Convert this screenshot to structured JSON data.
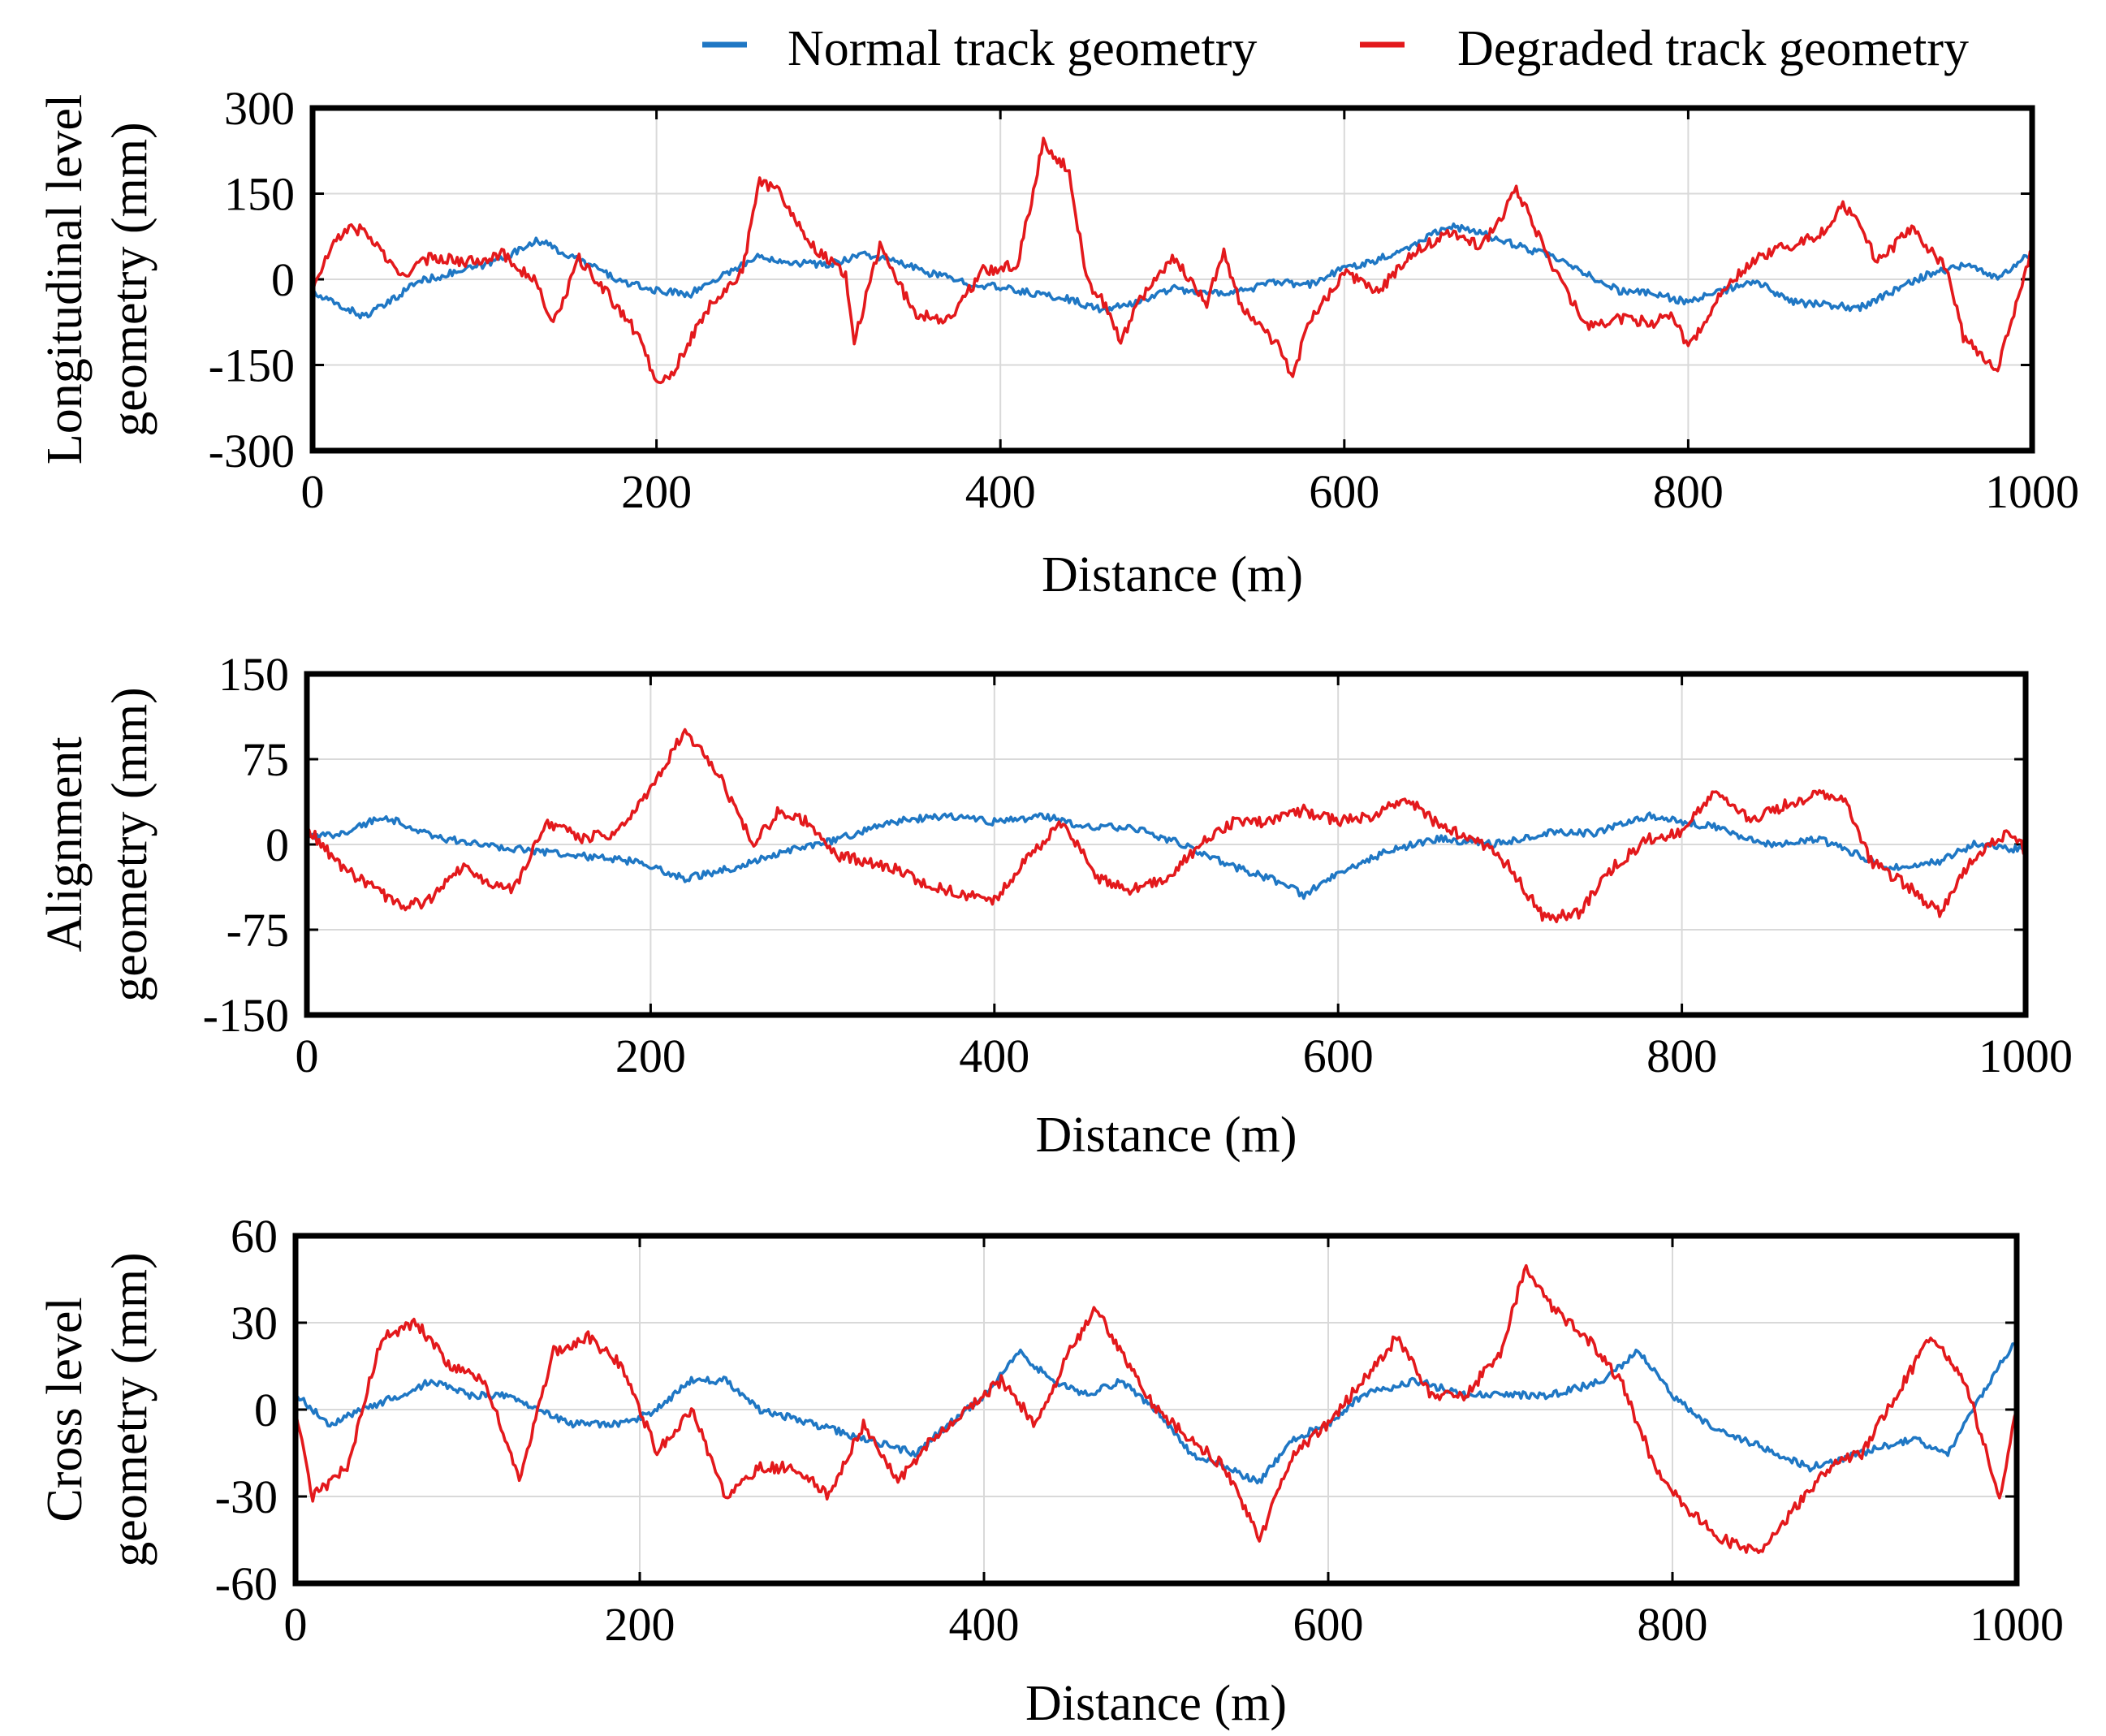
{
  "legend": {
    "items": [
      {
        "label": "Normal track geometry",
        "color": "#1f77c4"
      },
      {
        "label": "Degraded track geometry",
        "color": "#e3191c"
      }
    ]
  },
  "chart_data": [
    {
      "type": "line",
      "ylabel_lines": [
        "Longitudinal level",
        "geometry (mm)"
      ],
      "xlabel": "Distance (m)",
      "xlim": [
        0,
        1000
      ],
      "ylim": [
        -300,
        300
      ],
      "xticks": [
        "0",
        "200",
        "400",
        "600",
        "800",
        "1000"
      ],
      "yticks": [
        "300",
        "150",
        "0",
        "-150",
        "-300"
      ],
      "grid": true,
      "series": [
        {
          "name": "Normal track geometry",
          "color": "#1f77c4",
          "x": [
            0,
            15,
            30,
            45,
            60,
            80,
            100,
            120,
            130,
            150,
            165,
            180,
            200,
            220,
            240,
            260,
            280,
            300,
            320,
            340,
            360,
            380,
            400,
            420,
            440,
            460,
            480,
            500,
            520,
            540,
            560,
            580,
            600,
            620,
            640,
            660,
            680,
            700,
            720,
            740,
            760,
            780,
            800,
            820,
            840,
            860,
            880,
            900,
            920,
            940,
            960,
            980,
            1000
          ],
          "values": [
            -25,
            -45,
            -65,
            -40,
            -5,
            10,
            25,
            50,
            70,
            40,
            20,
            -5,
            -20,
            -25,
            10,
            40,
            30,
            25,
            45,
            30,
            10,
            -5,
            -15,
            -25,
            -35,
            -55,
            -40,
            -15,
            -25,
            -20,
            -5,
            -10,
            20,
            35,
            60,
            95,
            80,
            60,
            40,
            10,
            -20,
            -25,
            -40,
            -20,
            -5,
            -40,
            -45,
            -50,
            -20,
            10,
            25,
            5,
            45
          ]
        },
        {
          "name": "Degraded track geometry",
          "color": "#e3191c",
          "x": [
            0,
            10,
            20,
            30,
            40,
            50,
            70,
            90,
            110,
            130,
            140,
            155,
            170,
            190,
            200,
            210,
            230,
            250,
            260,
            270,
            290,
            310,
            315,
            330,
            350,
            370,
            390,
            410,
            425,
            440,
            450,
            460,
            470,
            480,
            500,
            520,
            530,
            540,
            560,
            570,
            580,
            600,
            620,
            640,
            660,
            680,
            690,
            700,
            720,
            740,
            760,
            780,
            790,
            800,
            820,
            840,
            860,
            880,
            890,
            900,
            910,
            930,
            950,
            960,
            980,
            1000
          ],
          "values": [
            -20,
            50,
            90,
            85,
            50,
            5,
            40,
            30,
            45,
            -5,
            -80,
            35,
            -20,
            -100,
            -180,
            -160,
            -50,
            15,
            170,
            160,
            60,
            10,
            -110,
            60,
            -60,
            -70,
            15,
            25,
            240,
            190,
            0,
            -40,
            -110,
            -40,
            40,
            -40,
            50,
            -50,
            -110,
            -170,
            -70,
            10,
            -20,
            45,
            80,
            60,
            100,
            160,
            30,
            -80,
            -70,
            -75,
            -60,
            -120,
            -20,
            40,
            60,
            85,
            130,
            95,
            30,
            90,
            20,
            -100,
            -160,
            55
          ]
        }
      ]
    },
    {
      "type": "line",
      "ylabel_lines": [
        "Alignment",
        "geometry (mm)"
      ],
      "xlabel": "Distance (m)",
      "xlim": [
        0,
        1000
      ],
      "ylim": [
        -150,
        150
      ],
      "xticks": [
        "0",
        "200",
        "400",
        "600",
        "800",
        "1000"
      ],
      "yticks": [
        "150",
        "75",
        "0",
        "-75",
        "-150"
      ],
      "grid": true,
      "series": [
        {
          "name": "Normal track geometry",
          "color": "#1f77c4",
          "x": [
            0,
            20,
            45,
            60,
            80,
            100,
            130,
            160,
            190,
            220,
            250,
            280,
            310,
            340,
            370,
            400,
            430,
            450,
            480,
            510,
            540,
            570,
            580,
            600,
            630,
            660,
            690,
            720,
            750,
            780,
            820,
            850,
            880,
            920,
            950,
            970,
            1000
          ],
          "values": [
            5,
            10,
            25,
            15,
            5,
            0,
            -5,
            -10,
            -15,
            -30,
            -20,
            -5,
            5,
            20,
            25,
            20,
            25,
            15,
            15,
            0,
            -20,
            -35,
            -45,
            -25,
            -5,
            5,
            0,
            10,
            10,
            25,
            15,
            0,
            5,
            -20,
            -15,
            0,
            -5
          ]
        },
        {
          "name": "Degraded track geometry",
          "color": "#e3191c",
          "x": [
            0,
            20,
            40,
            55,
            70,
            90,
            100,
            120,
            140,
            160,
            180,
            200,
            220,
            240,
            260,
            275,
            290,
            310,
            340,
            360,
            385,
            400,
            420,
            440,
            460,
            480,
            500,
            520,
            540,
            560,
            580,
            600,
            620,
            640,
            660,
            680,
            700,
            720,
            740,
            760,
            780,
            800,
            820,
            840,
            860,
            880,
            895,
            910,
            930,
            950,
            970,
            990,
            1000
          ],
          "values": [
            15,
            -20,
            -40,
            -55,
            -50,
            -20,
            -30,
            -40,
            20,
            5,
            10,
            50,
            100,
            60,
            0,
            30,
            20,
            -10,
            -20,
            -35,
            -45,
            -50,
            -10,
            20,
            -30,
            -40,
            -30,
            0,
            20,
            20,
            30,
            20,
            25,
            40,
            15,
            5,
            -20,
            -65,
            -60,
            -20,
            5,
            10,
            50,
            20,
            35,
            45,
            40,
            -15,
            -35,
            -60,
            -10,
            10,
            -5
          ]
        }
      ]
    },
    {
      "type": "line",
      "ylabel_lines": [
        "Cross level",
        "geometry (mm)"
      ],
      "xlabel": "Distance (m)",
      "xlim": [
        0,
        1000
      ],
      "ylim": [
        -60,
        60
      ],
      "xticks": [
        "0",
        "200",
        "400",
        "600",
        "800",
        "1000"
      ],
      "yticks": [
        "60",
        "30",
        "0",
        "-30",
        "-60"
      ],
      "grid": true,
      "series": [
        {
          "name": "Normal track geometry",
          "color": "#1f77c4",
          "x": [
            0,
            20,
            40,
            60,
            80,
            100,
            120,
            140,
            160,
            190,
            210,
            230,
            250,
            270,
            300,
            330,
            360,
            380,
            400,
            420,
            440,
            460,
            480,
            500,
            520,
            540,
            560,
            580,
            600,
            620,
            650,
            680,
            700,
            730,
            760,
            780,
            800,
            820,
            840,
            860,
            880,
            910,
            940,
            960,
            980,
            1000
          ],
          "values": [
            5,
            -5,
            0,
            5,
            10,
            5,
            5,
            0,
            -5,
            -5,
            0,
            10,
            10,
            0,
            -5,
            -10,
            -15,
            -5,
            5,
            20,
            10,
            5,
            10,
            0,
            -15,
            -20,
            -25,
            -10,
            -5,
            5,
            10,
            5,
            5,
            5,
            10,
            20,
            5,
            -5,
            -10,
            -15,
            -20,
            -15,
            -10,
            -15,
            5,
            25
          ]
        },
        {
          "name": "Degraded track geometry",
          "color": "#e3191c",
          "x": [
            0,
            10,
            30,
            50,
            70,
            90,
            110,
            130,
            150,
            170,
            190,
            210,
            230,
            250,
            270,
            290,
            310,
            330,
            350,
            370,
            390,
            410,
            430,
            450,
            465,
            480,
            500,
            520,
            540,
            560,
            580,
            600,
            620,
            640,
            660,
            680,
            700,
            715,
            730,
            750,
            770,
            790,
            810,
            830,
            850,
            870,
            890,
            910,
            930,
            950,
            970,
            990,
            1000
          ],
          "values": [
            0,
            -30,
            -20,
            25,
            30,
            15,
            10,
            -25,
            20,
            25,
            15,
            -15,
            0,
            -30,
            -20,
            -20,
            -30,
            -5,
            -25,
            -10,
            0,
            10,
            -5,
            20,
            35,
            20,
            0,
            -10,
            -20,
            -45,
            -15,
            -5,
            10,
            25,
            5,
            5,
            20,
            50,
            35,
            25,
            10,
            -20,
            -35,
            -45,
            -50,
            -35,
            -20,
            -15,
            5,
            25,
            10,
            -30,
            0
          ]
        }
      ]
    }
  ]
}
